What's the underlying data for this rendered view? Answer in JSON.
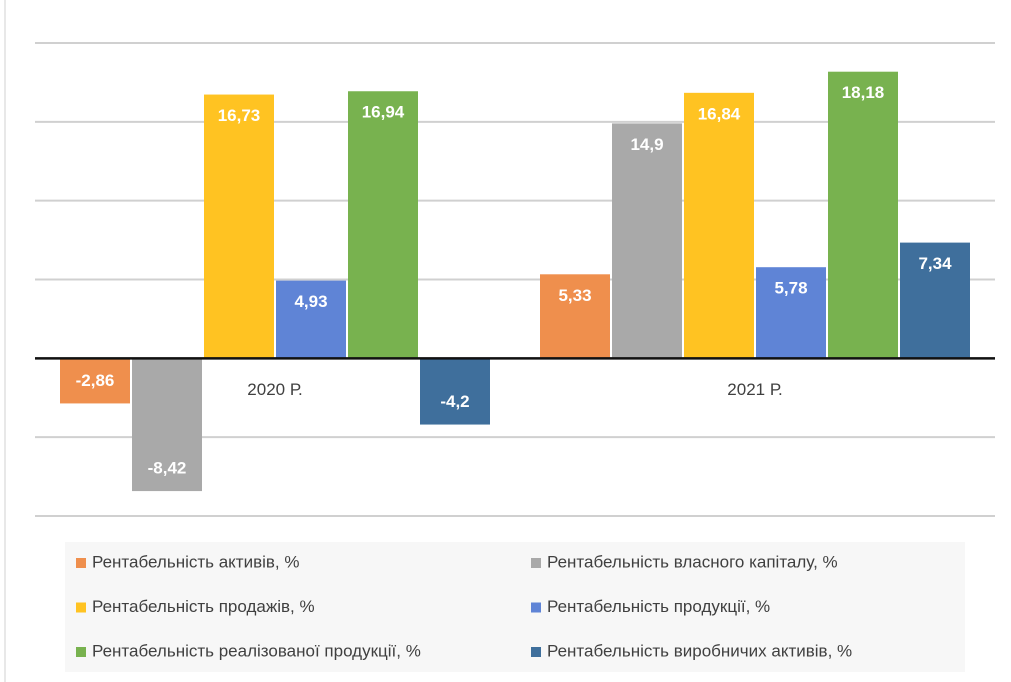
{
  "chart_data": {
    "type": "bar",
    "categories": [
      "2020 Р.",
      "2021 Р."
    ],
    "ylim": [
      -10,
      20
    ],
    "yticks": [
      -10,
      -5,
      0,
      5,
      10,
      15,
      20
    ],
    "grid": true,
    "series": [
      {
        "name": "Рентабельність активів, %",
        "color": "#ef8f4d",
        "values": [
          -2.86,
          5.33
        ],
        "value_labels": [
          "-2,86",
          "5,33"
        ]
      },
      {
        "name": "Рентабельність власного капіталу, %",
        "color": "#a9a9a9",
        "values": [
          -8.42,
          14.9
        ],
        "value_labels": [
          "-8,42",
          "14,9"
        ]
      },
      {
        "name": "Рентабельність продажів, %",
        "color": "#ffc322",
        "values": [
          16.73,
          16.84
        ],
        "value_labels": [
          "16,73",
          "16,84"
        ]
      },
      {
        "name": "Рентабельність продукції, %",
        "color": "#5f84d6",
        "values": [
          4.93,
          5.78
        ],
        "value_labels": [
          "4,93",
          "5,78"
        ]
      },
      {
        "name": "Рентабельність реалізованої продукції, %",
        "color": "#78b24f",
        "values": [
          16.94,
          18.18
        ],
        "value_labels": [
          "16,94",
          "18,18"
        ]
      },
      {
        "name": "Рентабельність виробничих активів, %",
        "color": "#3f6f9c",
        "values": [
          -4.2,
          7.34
        ],
        "value_labels": [
          "-4,2",
          "7,34"
        ]
      }
    ]
  }
}
